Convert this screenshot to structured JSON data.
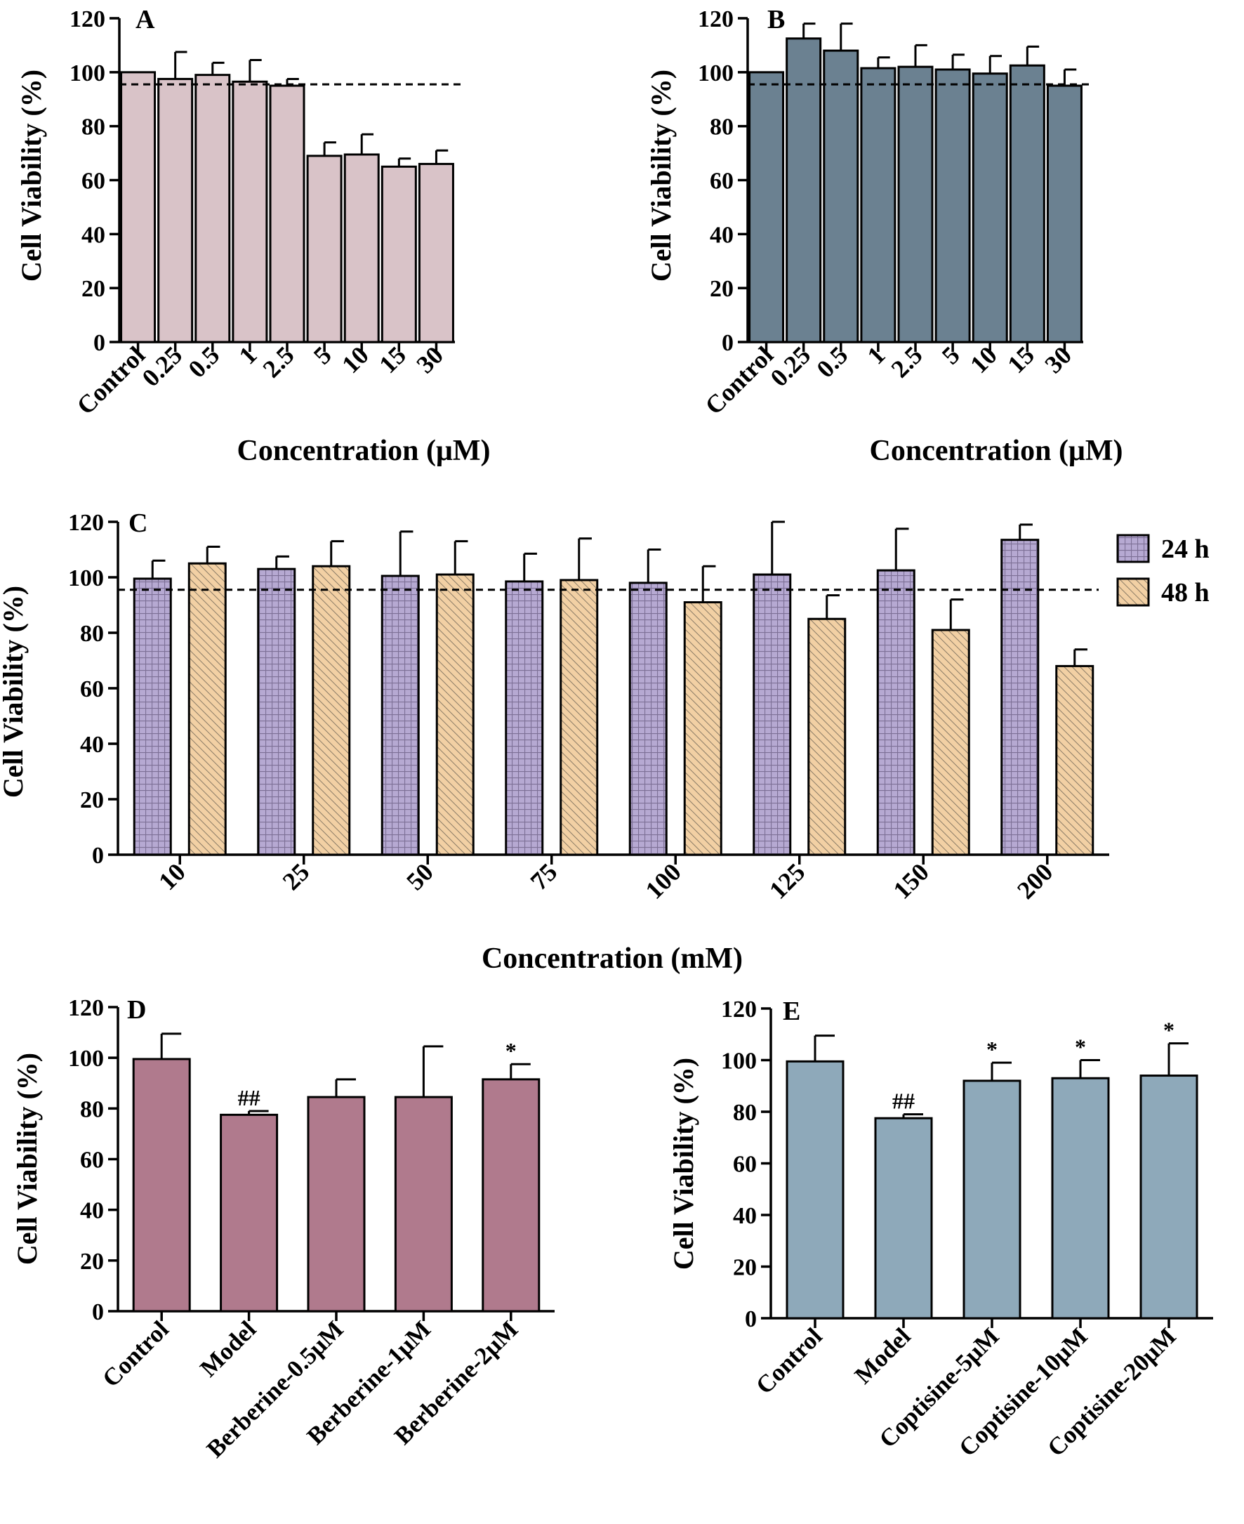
{
  "chart_data": [
    {
      "id": "A",
      "type": "bar",
      "panel_label": "A",
      "categories": [
        "Control",
        "0.25",
        "0.5",
        "1",
        "2.5",
        "5",
        "10",
        "15",
        "30"
      ],
      "values": [
        100,
        97.5,
        99,
        96.5,
        95,
        69,
        69.5,
        65,
        66
      ],
      "errors": [
        0,
        10,
        4.5,
        8,
        2.5,
        5,
        7.5,
        3,
        5
      ],
      "color": "#d9c3c8",
      "reference_line": 95.5,
      "ylabel": "Cell Viability (%)",
      "xlabel": "Concentration (μM)",
      "ylim": [
        0,
        120
      ],
      "yticks": [
        "0",
        "20",
        "40",
        "60",
        "80",
        "100",
        "120"
      ]
    },
    {
      "id": "B",
      "type": "bar",
      "panel_label": "B",
      "categories": [
        "Control",
        "0.25",
        "0.5",
        "1",
        "2.5",
        "5",
        "10",
        "15",
        "30"
      ],
      "values": [
        100,
        112.5,
        108,
        101.5,
        102,
        101,
        99.5,
        102.5,
        95
      ],
      "errors": [
        0,
        5.5,
        10,
        4,
        8,
        5.5,
        6.5,
        7,
        6
      ],
      "color": "#6b8191",
      "reference_line": 95.5,
      "ylabel": "Cell Viability (%)",
      "xlabel": "Concentration (μM)",
      "ylim": [
        0,
        120
      ],
      "yticks": [
        "0",
        "20",
        "40",
        "60",
        "80",
        "100",
        "120"
      ]
    },
    {
      "id": "C",
      "type": "bar",
      "panel_label": "C",
      "categories": [
        "10",
        "25",
        "50",
        "75",
        "100",
        "125",
        "150",
        "200"
      ],
      "series": [
        {
          "name": "24 h",
          "values": [
            99.5,
            103,
            100.5,
            98.5,
            98,
            101,
            102.5,
            113.5
          ],
          "errors": [
            6.5,
            4.5,
            16,
            10,
            12,
            19,
            15,
            5.5
          ],
          "color": "#b6a9d2",
          "pattern": "grid"
        },
        {
          "name": "48 h",
          "values": [
            105,
            104,
            101,
            99,
            91,
            85,
            81,
            68
          ],
          "errors": [
            6,
            9,
            12,
            15,
            13,
            8.5,
            11,
            6
          ],
          "color": "#f2d0a4",
          "pattern": "hatch"
        }
      ],
      "reference_line": 95.5,
      "ylabel": "Cell Viability (%)",
      "xlabel": "Concentration (mM)",
      "ylim": [
        0,
        120
      ],
      "yticks": [
        "0",
        "20",
        "40",
        "60",
        "80",
        "100",
        "120"
      ],
      "legend_position": "top-right"
    },
    {
      "id": "D",
      "type": "bar",
      "panel_label": "D",
      "categories": [
        "Control",
        "Model",
        "Berberine-0.5μM",
        "Berberine-1μM",
        "Berberine-2μM"
      ],
      "values": [
        99.5,
        77.5,
        84.5,
        84.5,
        91.5
      ],
      "errors": [
        10,
        1.5,
        7,
        20,
        6
      ],
      "annotations": [
        "",
        "##",
        "",
        "",
        "*"
      ],
      "color": "#b07a8d",
      "ylabel": "Cell Viability (%)",
      "ylim": [
        0,
        120
      ],
      "yticks": [
        "0",
        "20",
        "40",
        "60",
        "80",
        "100",
        "120"
      ]
    },
    {
      "id": "E",
      "type": "bar",
      "panel_label": "E",
      "categories": [
        "Control",
        "Model",
        "Coptisine-5μM",
        "Coptisine-10μM",
        "Coptisine-20μM"
      ],
      "values": [
        99.5,
        77.5,
        92,
        93,
        94
      ],
      "errors": [
        10,
        1.5,
        7,
        7,
        12.5
      ],
      "annotations": [
        "",
        "##",
        "*",
        "*",
        "*"
      ],
      "color": "#8ea9ba",
      "ylabel": "Cell Viability (%)",
      "ylim": [
        0,
        120
      ],
      "yticks": [
        "0",
        "20",
        "40",
        "60",
        "80",
        "100",
        "120"
      ]
    }
  ]
}
